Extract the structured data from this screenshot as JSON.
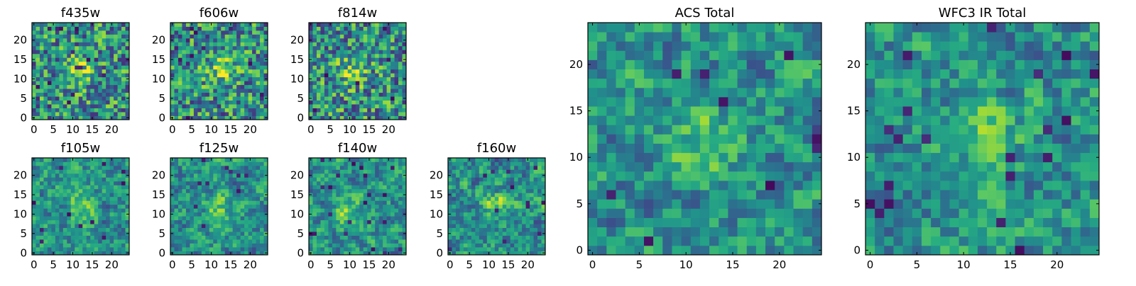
{
  "chart_data": [
    {
      "type": "heatmap",
      "title": "f435w",
      "xticks": [
        "0",
        "5",
        "10",
        "15",
        "20"
      ],
      "yticks": [
        "0",
        "5",
        "10",
        "15",
        "20"
      ],
      "xlim": [
        -0.5,
        24.5
      ],
      "ylim": [
        -0.5,
        24.5
      ],
      "grid": false,
      "colormap": "viridis",
      "bright_center": [
        12,
        12
      ],
      "note_values": "25x25 pixel image"
    },
    {
      "type": "heatmap",
      "title": "f606w",
      "xticks": [
        "0",
        "5",
        "10",
        "15",
        "20"
      ],
      "yticks": [
        "0",
        "5",
        "10",
        "15",
        "20"
      ],
      "xlim": [
        -0.5,
        24.5
      ],
      "ylim": [
        -0.5,
        24.5
      ],
      "grid": false,
      "colormap": "viridis",
      "bright_center": [
        12,
        12
      ]
    },
    {
      "type": "heatmap",
      "title": "f814w",
      "xticks": [
        "0",
        "5",
        "10",
        "15",
        "20"
      ],
      "yticks": [
        "0",
        "5",
        "10",
        "15",
        "20"
      ],
      "xlim": [
        -0.5,
        24.5
      ],
      "ylim": [
        -0.5,
        24.5
      ],
      "grid": false,
      "colormap": "viridis",
      "bright_center": [
        11,
        12
      ]
    },
    {
      "type": "heatmap",
      "title": "f105w",
      "xticks": [
        "0",
        "5",
        "10",
        "15",
        "20"
      ],
      "yticks": [
        "0",
        "5",
        "10",
        "15",
        "20"
      ],
      "xlim": [
        -0.5,
        24.5
      ],
      "ylim": [
        -0.5,
        24.5
      ],
      "grid": false,
      "colormap": "viridis",
      "bright_center": [
        12,
        12
      ]
    },
    {
      "type": "heatmap",
      "title": "f125w",
      "xticks": [
        "0",
        "5",
        "10",
        "15",
        "20"
      ],
      "yticks": [
        "0",
        "5",
        "10",
        "15",
        "20"
      ],
      "xlim": [
        -0.5,
        24.5
      ],
      "ylim": [
        -0.5,
        24.5
      ],
      "grid": false,
      "colormap": "viridis",
      "bright_center": [
        12,
        11
      ]
    },
    {
      "type": "heatmap",
      "title": "f140w",
      "xticks": [
        "0",
        "5",
        "10",
        "15",
        "20"
      ],
      "yticks": [
        "0",
        "5",
        "10",
        "15",
        "20"
      ],
      "xlim": [
        -0.5,
        24.5
      ],
      "ylim": [
        -0.5,
        24.5
      ],
      "grid": false,
      "colormap": "viridis",
      "bright_center": [
        10,
        11
      ]
    },
    {
      "type": "heatmap",
      "title": "f160w",
      "xticks": [
        "0",
        "5",
        "10",
        "15",
        "20"
      ],
      "yticks": [
        "0",
        "5",
        "10",
        "15",
        "20"
      ],
      "xlim": [
        -0.5,
        24.5
      ],
      "ylim": [
        -0.5,
        24.5
      ],
      "grid": false,
      "colormap": "viridis",
      "bright_center": [
        12,
        12
      ]
    },
    {
      "type": "heatmap",
      "title": "ACS Total",
      "xticks": [
        "0",
        "5",
        "10",
        "15",
        "20"
      ],
      "yticks": [
        "0",
        "5",
        "10",
        "15",
        "20"
      ],
      "xlim": [
        -0.5,
        24.5
      ],
      "ylim": [
        -0.5,
        24.5
      ],
      "grid": false,
      "colormap": "viridis",
      "bright_center": [
        12,
        11
      ]
    },
    {
      "type": "heatmap",
      "title": "WFC3 IR Total",
      "xticks": [
        "0",
        "5",
        "10",
        "15",
        "20"
      ],
      "yticks": [
        "0",
        "5",
        "10",
        "15",
        "20"
      ],
      "xlim": [
        -0.5,
        24.5
      ],
      "ylim": [
        -0.5,
        24.5
      ],
      "grid": false,
      "colormap": "viridis",
      "bright_center": [
        12,
        12
      ]
    }
  ],
  "colors": {
    "viridis_dark": "#440154",
    "viridis_blue": "#31688e",
    "viridis_teal": "#21918c",
    "viridis_green": "#35b779",
    "viridis_yellow": "#fde725",
    "frame": "#000000"
  }
}
